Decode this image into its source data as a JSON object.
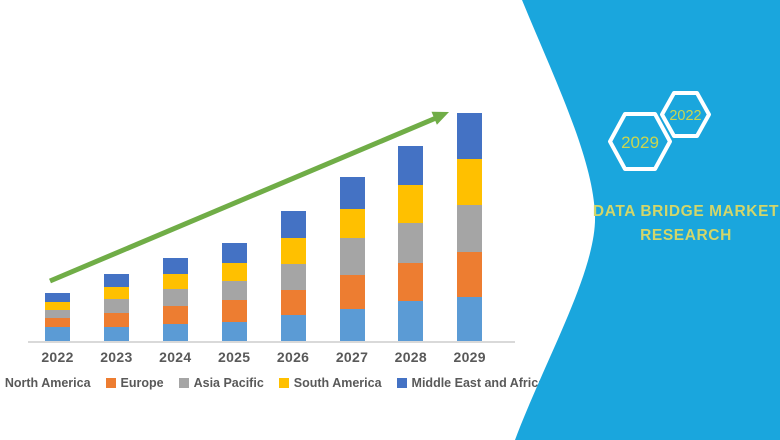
{
  "chart_data": {
    "type": "bar",
    "stacked": true,
    "title": "",
    "xlabel": "",
    "ylabel": "",
    "value_axis_visible": false,
    "values_are": "relative stacked segment sizes estimated from pixel heights (no numeric axis shown)",
    "categories": [
      "2022",
      "2023",
      "2024",
      "2025",
      "2026",
      "2027",
      "2028",
      "2029"
    ],
    "series": [
      {
        "name": "North America",
        "color": "#5B9BD5",
        "values": [
          14,
          14,
          17,
          19,
          26,
          32,
          40,
          44
        ]
      },
      {
        "name": "Europe",
        "color": "#ED7D31",
        "values": [
          9,
          14,
          18,
          22,
          25,
          34,
          38,
          45
        ]
      },
      {
        "name": "Asia Pacific",
        "color": "#A5A5A5",
        "values": [
          8,
          14,
          17,
          19,
          26,
          37,
          40,
          47
        ]
      },
      {
        "name": "South America",
        "color": "#FFC000",
        "values": [
          8,
          12,
          15,
          18,
          26,
          29,
          38,
          46
        ]
      },
      {
        "name": "Middle East and Africa",
        "color": "#4472C4",
        "values": [
          9,
          13,
          16,
          20,
          27,
          32,
          39,
          46
        ]
      }
    ],
    "legend_position": "bottom",
    "grid": false,
    "axis_line_color": "#D9D9D9",
    "tick_label_color": "#595959",
    "trend_arrow": {
      "color": "#70AD47",
      "direction": "up-right"
    }
  },
  "side_panel": {
    "background_color": "#1AA6DD",
    "hexagon_outline_color": "#FFFFFF",
    "year_text_color": "#CBD64E",
    "hexagons": [
      {
        "label": "2029"
      },
      {
        "label": "2022"
      }
    ],
    "brand_line1": "DATA BRIDGE MARKET",
    "brand_line2": "RESEARCH",
    "brand_text_color": "#D2D66A"
  }
}
